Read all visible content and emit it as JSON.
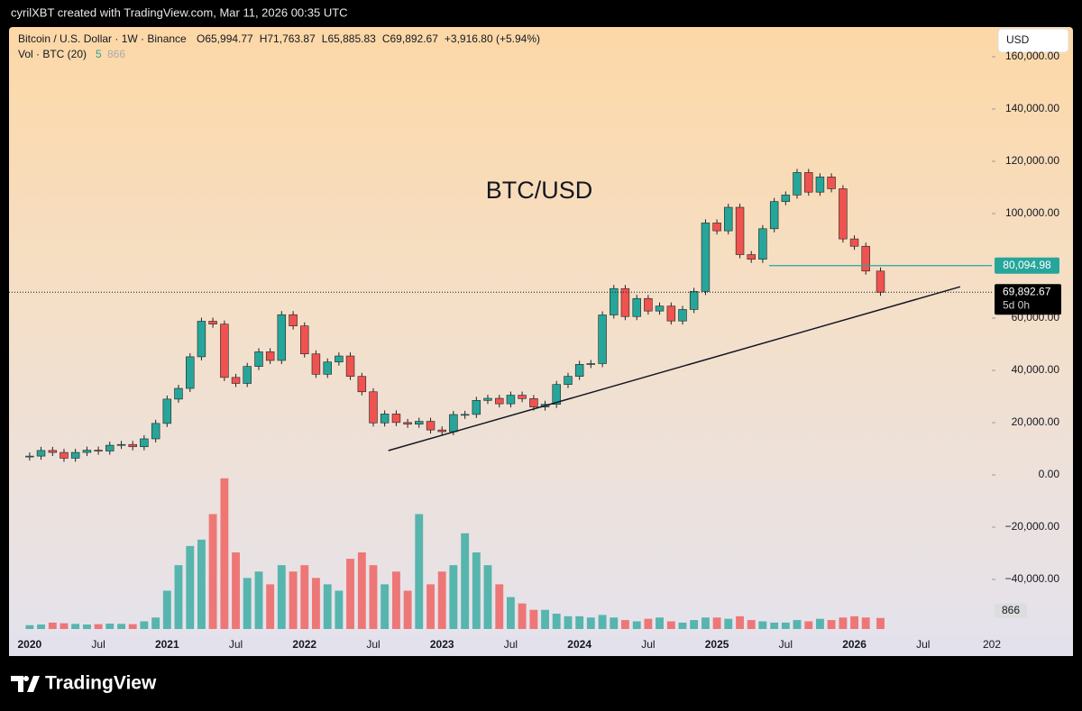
{
  "page": {
    "caption": "cyrilXBT created with TradingView.com, Mar 11, 2026 00:35 UTC",
    "brand": "TradingView"
  },
  "chart_data": {
    "type": "candlestick",
    "header": {
      "symbol": "Bitcoin / U.S. Dollar · 1W · Binance",
      "ohlc": [
        "O65,994.77",
        "H71,763.87",
        "L65,885.83",
        "C69,892.67",
        "+3,916.80 (+5.94%)"
      ],
      "volume_label": "Vol · BTC (20)",
      "volume_a": "5",
      "volume_b": "866"
    },
    "currency": "USD",
    "title": "BTC/USD",
    "x": [
      2020,
      2020.083,
      2020.167,
      2020.25,
      2020.333,
      2020.417,
      2020.5,
      2020.583,
      2020.667,
      2020.75,
      2020.833,
      2020.917,
      2021,
      2021.083,
      2021.167,
      2021.25,
      2021.333,
      2021.417,
      2021.5,
      2021.583,
      2021.667,
      2021.75,
      2021.833,
      2021.917,
      2022,
      2022.083,
      2022.167,
      2022.25,
      2022.333,
      2022.417,
      2022.5,
      2022.583,
      2022.667,
      2022.75,
      2022.833,
      2022.917,
      2023,
      2023.083,
      2023.167,
      2023.25,
      2023.333,
      2023.417,
      2023.5,
      2023.583,
      2023.667,
      2023.75,
      2023.833,
      2023.917,
      2024,
      2024.083,
      2024.167,
      2024.25,
      2024.333,
      2024.417,
      2024.5,
      2024.583,
      2024.667,
      2024.75,
      2024.833,
      2024.917,
      2025,
      2025.083,
      2025.167,
      2025.25,
      2025.333,
      2025.417,
      2025.5,
      2025.583,
      2025.667,
      2025.75,
      2025.833,
      2025.917,
      2026,
      2026.083,
      2026.19
    ],
    "values": [
      7200,
      9350,
      8600,
      6400,
      8600,
      9450,
      9140,
      11350,
      11650,
      10780,
      13800,
      19700,
      29000,
      33100,
      45200,
      58800,
      57700,
      37300,
      35000,
      41500,
      47100,
      43800,
      61300,
      57000,
      46300,
      38500,
      43200,
      45500,
      37700,
      31800,
      19900,
      23300,
      20050,
      19400,
      20500,
      17200,
      16550,
      23100,
      23150,
      28500,
      29300,
      27200,
      30500,
      29200,
      26000,
      27000,
      34600,
      37700,
      42300,
      42600,
      61200,
      71300,
      60600,
      67500,
      62700,
      64600,
      58900,
      63300,
      70200,
      96400,
      93400,
      102400,
      84300,
      82500,
      94200,
      104600,
      107100,
      115700,
      108200,
      114000,
      109500,
      90300,
      87500,
      78000,
      69892.67
    ],
    "volume": {
      "axis": "y2",
      "values": [
        300,
        350,
        500,
        450,
        400,
        350,
        380,
        420,
        400,
        380,
        600,
        900,
        3000,
        5000,
        6500,
        7000,
        9000,
        11800,
        6000,
        4000,
        4500,
        3500,
        5000,
        4500,
        5000,
        4000,
        3500,
        3000,
        5500,
        6000,
        5000,
        3500,
        4500,
        3000,
        9000,
        3500,
        4500,
        5000,
        7500,
        6000,
        5000,
        3500,
        2500,
        2000,
        1500,
        1500,
        1200,
        1000,
        1000,
        900,
        1100,
        900,
        700,
        600,
        800,
        900,
        600,
        500,
        700,
        900,
        900,
        800,
        1000,
        700,
        600,
        500,
        500,
        700,
        600,
        800,
        700,
        900,
        1000,
        900,
        866
      ],
      "last_label": "866"
    },
    "up_color": "#26a69a",
    "down_color": "#ef5350",
    "xlim": [
      2019.85,
      2027.0
    ],
    "xticks": [
      2020,
      {
        "value": 2020.5,
        "label": "Jul"
      },
      2021,
      {
        "value": 2021.5,
        "label": "Jul"
      },
      2022,
      {
        "value": 2022.5,
        "label": "Jul"
      },
      2023,
      {
        "value": 2023.5,
        "label": "Jul"
      },
      2024,
      {
        "value": 2024.5,
        "label": "Jul"
      },
      2025,
      {
        "value": 2025.5,
        "label": "Jul"
      },
      2026,
      {
        "value": 2026.5,
        "label": "Jul"
      },
      {
        "value": 2027,
        "label": "202"
      }
    ],
    "ylim": [
      -61379,
      171379
    ],
    "yticks": [
      {
        "value": -40000,
        "label": "−40,000.00"
      },
      {
        "value": -20000,
        "label": "−20,000.00"
      },
      {
        "value": 0,
        "label": "0.00"
      },
      {
        "value": 20000,
        "label": "20,000.00"
      },
      {
        "value": 40000,
        "label": "40,000.00"
      },
      {
        "value": 60000,
        "label": "60,000.00"
      },
      {
        "value": 100000,
        "label": "100,000.00"
      },
      {
        "value": 120000,
        "label": "120,000.00"
      },
      {
        "value": 140000,
        "label": "140,000.00"
      },
      {
        "value": 160000,
        "label": "160,000.00"
      }
    ],
    "y2lim": [
      0,
      12000
    ],
    "level": {
      "value": 80094.98,
      "label": "80,094.98",
      "x_start": 2025.38,
      "color": "#26a69a"
    },
    "last_price": {
      "value": 69892.67,
      "label": "69,892.67",
      "countdown": "5d 0h"
    },
    "trendline": {
      "x": [
        2022.61,
        2026.77
      ],
      "y": [
        9300,
        72000
      ]
    }
  }
}
